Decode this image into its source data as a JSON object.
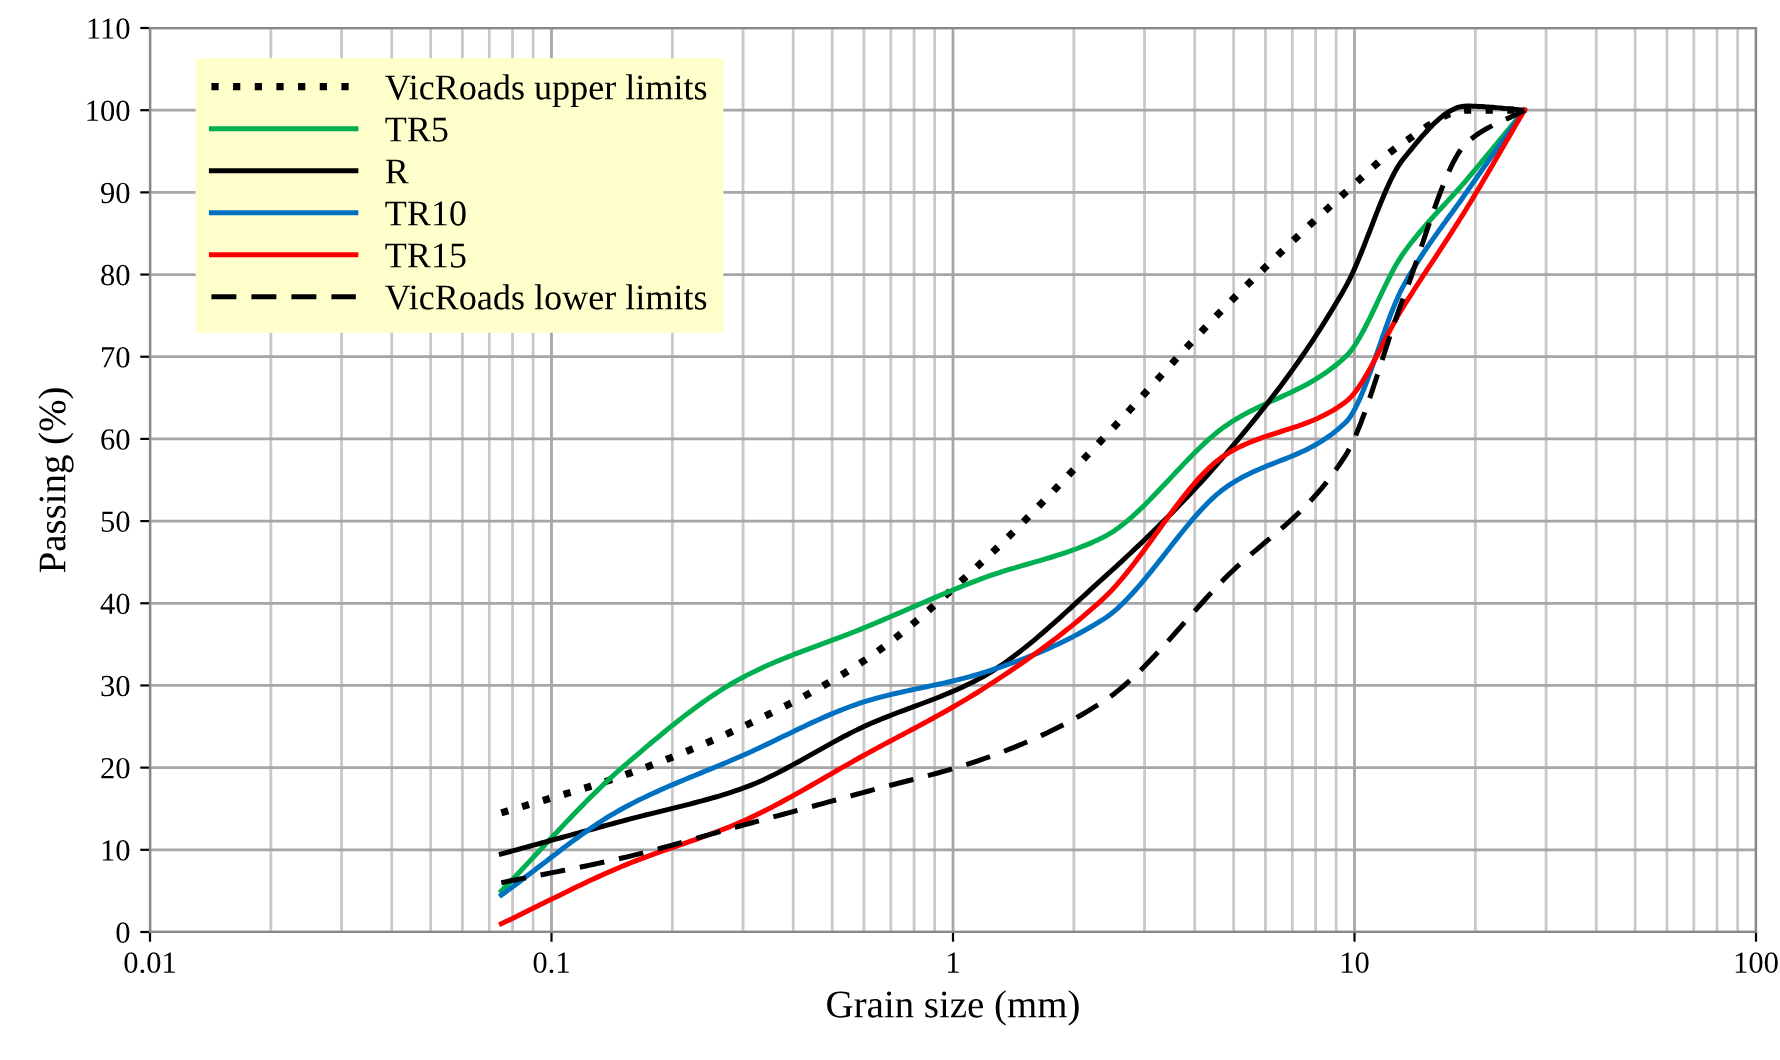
{
  "chart_data": {
    "type": "line",
    "xlabel": "Grain size (mm)",
    "ylabel": "Passing (%)",
    "log": "x",
    "xlim": [
      0.01,
      100
    ],
    "xticks": [
      0.01,
      0.1,
      1,
      10,
      100
    ],
    "ylim": [
      0,
      110
    ],
    "yticks": [
      0,
      10,
      20,
      30,
      40,
      50,
      60,
      70,
      80,
      90,
      100,
      110
    ],
    "grid": true,
    "legend": "top left",
    "marker": "none",
    "x": [
      0.075,
      0.15,
      0.3,
      0.6,
      1.18,
      2.36,
      4.75,
      9.5,
      13.2,
      19,
      26.5
    ],
    "series": [
      {
        "name": "VicRoads upper limits",
        "color": "#000000",
        "line_style": "dotted",
        "values": [
          14.5,
          19,
          25,
          33,
          45,
          60,
          76,
          90,
          96,
          100,
          100
        ]
      },
      {
        "name": "TR5",
        "color": "#00b050",
        "line_style": "solid",
        "values": [
          5,
          20,
          31,
          37,
          43,
          48,
          61.5,
          70,
          82.5,
          91.5,
          100
        ]
      },
      {
        "name": "R",
        "color": "#000000",
        "line_style": "solid",
        "values": [
          9.5,
          13.5,
          17.5,
          25,
          31,
          43,
          58,
          78.5,
          94,
          100.5,
          100
        ]
      },
      {
        "name": "TR10",
        "color": "#0070c0",
        "line_style": "solid",
        "values": [
          4.5,
          15,
          21.5,
          28,
          31.5,
          38,
          54,
          62,
          78.5,
          90,
          100
        ]
      },
      {
        "name": "TR15",
        "color": "#ff0000",
        "line_style": "solid",
        "values": [
          1,
          8,
          13.5,
          21.5,
          29.5,
          40.5,
          58,
          64.5,
          76,
          88,
          100
        ]
      },
      {
        "name": "VicRoads lower limits",
        "color": "#000000",
        "line_style": "dashed",
        "values": [
          6,
          9,
          13,
          17,
          21,
          28,
          43,
          58,
          77,
          96,
          100
        ]
      }
    ]
  }
}
